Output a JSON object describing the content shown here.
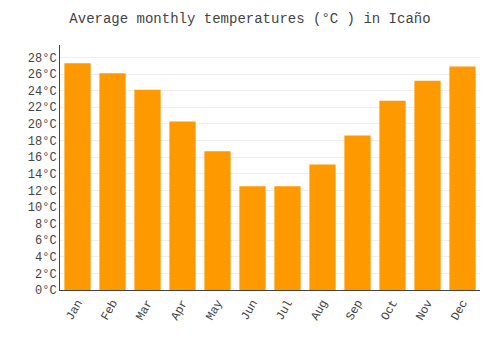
{
  "chart_data": {
    "type": "bar",
    "title": "Average monthly temperatures (°C ) in Icaño",
    "categories": [
      "Jan",
      "Feb",
      "Mar",
      "Apr",
      "May",
      "Jun",
      "Jul",
      "Aug",
      "Sep",
      "Oct",
      "Nov",
      "Dec"
    ],
    "values": [
      27.3,
      26.1,
      24.1,
      20.3,
      16.7,
      12.5,
      12.5,
      15.1,
      18.6,
      22.8,
      25.2,
      26.9
    ],
    "color": "#FF9900",
    "ylim": [
      0,
      29.5
    ],
    "yticks": [
      {
        "value": 0,
        "label": "0°C"
      },
      {
        "value": 2,
        "label": "2°C"
      },
      {
        "value": 4,
        "label": "4°C"
      },
      {
        "value": 6,
        "label": "6°C"
      },
      {
        "value": 8,
        "label": "8°C"
      },
      {
        "value": 10,
        "label": "10°C"
      },
      {
        "value": 12,
        "label": "12°C"
      },
      {
        "value": 14,
        "label": "14°C"
      },
      {
        "value": 16,
        "label": "16°C"
      },
      {
        "value": 18,
        "label": "18°C"
      },
      {
        "value": 20,
        "label": "20°C"
      },
      {
        "value": 22,
        "label": "22°C"
      },
      {
        "value": 24,
        "label": "24°C"
      },
      {
        "value": 26,
        "label": "26°C"
      },
      {
        "value": 28,
        "label": "28°C"
      }
    ],
    "grid": true
  }
}
